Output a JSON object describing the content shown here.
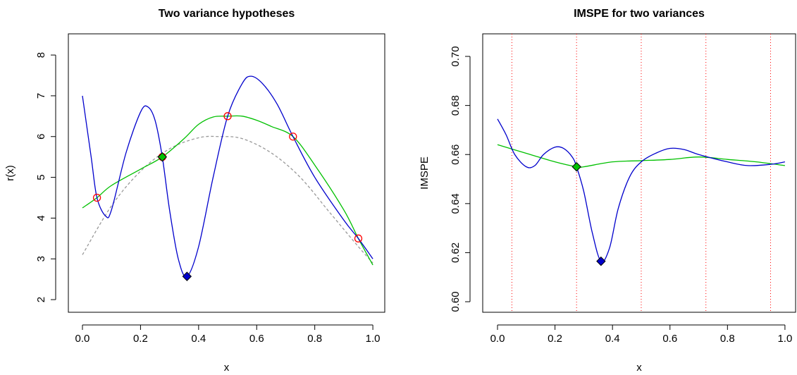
{
  "chart_data": [
    {
      "type": "line",
      "title": "Two variance hypotheses",
      "x_label": "x",
      "y_label": "r(x)",
      "xlim": [
        -0.0485,
        1.041
      ],
      "ylim": [
        1.69,
        8.52
      ],
      "xticks": [
        {
          "value": 0,
          "label": "0.0"
        },
        {
          "value": 0.2,
          "label": "0.2"
        },
        {
          "value": 0.4,
          "label": "0.4"
        },
        {
          "value": 0.6,
          "label": "0.6"
        },
        {
          "value": 0.8,
          "label": "0.8"
        },
        {
          "value": 1,
          "label": "1.0"
        }
      ],
      "yticks": [
        2,
        3,
        4,
        5,
        6,
        7,
        8
      ],
      "series": [
        {
          "style": "dashed",
          "color": "#999999",
          "x": [
            0,
            0.1,
            0.2,
            0.3,
            0.4,
            0.47,
            0.55,
            0.65,
            0.75,
            0.85,
            0.95,
            1.0
          ],
          "values": [
            3.1,
            4.3,
            5.15,
            5.7,
            5.97,
            6.0,
            5.95,
            5.6,
            5.0,
            4.15,
            3.3,
            2.9
          ]
        },
        {
          "style": "line",
          "color": "#00c000",
          "x": [
            0,
            0.05,
            0.1,
            0.2,
            0.275,
            0.35,
            0.4,
            0.45,
            0.5,
            0.55,
            0.6,
            0.65,
            0.725,
            0.8,
            0.9,
            0.95,
            1.0
          ],
          "values": [
            4.25,
            4.5,
            4.8,
            5.2,
            5.5,
            5.95,
            6.3,
            6.48,
            6.5,
            6.5,
            6.4,
            6.25,
            6.0,
            5.3,
            4.2,
            3.5,
            2.85
          ]
        },
        {
          "style": "line",
          "color": "#0000cc",
          "x": [
            0,
            0.03,
            0.05,
            0.08,
            0.1,
            0.15,
            0.2,
            0.225,
            0.25,
            0.275,
            0.3,
            0.33,
            0.36,
            0.4,
            0.45,
            0.5,
            0.55,
            0.58,
            0.62,
            0.67,
            0.725,
            0.8,
            0.9,
            0.95,
            1.0
          ],
          "values": [
            7.0,
            5.5,
            4.5,
            4.05,
            4.2,
            5.6,
            6.6,
            6.73,
            6.4,
            5.5,
            4.2,
            3.0,
            2.57,
            3.3,
            5.0,
            6.5,
            7.3,
            7.48,
            7.3,
            6.8,
            6.0,
            5.0,
            3.95,
            3.5,
            3.0
          ]
        },
        {
          "style": "circles",
          "color": "#ff0000",
          "x": [
            0.05,
            0.275,
            0.5,
            0.725,
            0.95
          ],
          "values": [
            4.5,
            5.5,
            6.5,
            6.0,
            3.5
          ]
        },
        {
          "style": "diamond",
          "color": "#0000cc",
          "x": [
            0.36
          ],
          "values": [
            2.57
          ]
        },
        {
          "style": "diamond",
          "color": "#00c000",
          "x": [
            0.275
          ],
          "values": [
            5.5
          ]
        }
      ]
    },
    {
      "type": "line",
      "title": "IMSPE for two variances",
      "x_label": "x",
      "y_label": "IMSPE",
      "xlim": [
        -0.0515,
        1.037
      ],
      "ylim": [
        0.5957,
        0.7092
      ],
      "xticks": [
        {
          "value": 0,
          "label": "0.0"
        },
        {
          "value": 0.2,
          "label": "0.2"
        },
        {
          "value": 0.4,
          "label": "0.4"
        },
        {
          "value": 0.6,
          "label": "0.6"
        },
        {
          "value": 0.8,
          "label": "0.8"
        },
        {
          "value": 1,
          "label": "1.0"
        }
      ],
      "yticks": [
        {
          "value": 0.6,
          "label": "0.60"
        },
        {
          "value": 0.62,
          "label": "0.62"
        },
        {
          "value": 0.64,
          "label": "0.64"
        },
        {
          "value": 0.66,
          "label": "0.66"
        },
        {
          "value": 0.68,
          "label": "0.68"
        },
        {
          "value": 0.7,
          "label": "0.70"
        }
      ],
      "vlines": [
        0.05,
        0.275,
        0.5,
        0.725,
        0.95
      ],
      "vline_color": "#ff0000",
      "series": [
        {
          "style": "line",
          "color": "#00c000",
          "x": [
            0,
            0.1,
            0.2,
            0.275,
            0.3,
            0.4,
            0.5,
            0.6,
            0.7,
            0.8,
            0.9,
            1.0
          ],
          "values": [
            0.664,
            0.6605,
            0.657,
            0.655,
            0.655,
            0.657,
            0.6575,
            0.658,
            0.659,
            0.658,
            0.657,
            0.6555
          ]
        },
        {
          "style": "line",
          "color": "#0000cc",
          "x": [
            0,
            0.03,
            0.06,
            0.1,
            0.13,
            0.16,
            0.2,
            0.23,
            0.26,
            0.275,
            0.3,
            0.33,
            0.36,
            0.39,
            0.42,
            0.46,
            0.5,
            0.55,
            0.6,
            0.65,
            0.7,
            0.8,
            0.87,
            0.95,
            1.0
          ],
          "values": [
            0.6745,
            0.668,
            0.66,
            0.655,
            0.6555,
            0.66,
            0.663,
            0.6625,
            0.659,
            0.655,
            0.645,
            0.628,
            0.6165,
            0.622,
            0.638,
            0.651,
            0.657,
            0.6605,
            0.6625,
            0.662,
            0.66,
            0.657,
            0.6555,
            0.656,
            0.657
          ]
        },
        {
          "style": "diamond",
          "color": "#0000cc",
          "x": [
            0.36
          ],
          "values": [
            0.6165
          ]
        },
        {
          "style": "diamond",
          "color": "#00c000",
          "x": [
            0.275
          ],
          "values": [
            0.655
          ]
        }
      ]
    }
  ]
}
